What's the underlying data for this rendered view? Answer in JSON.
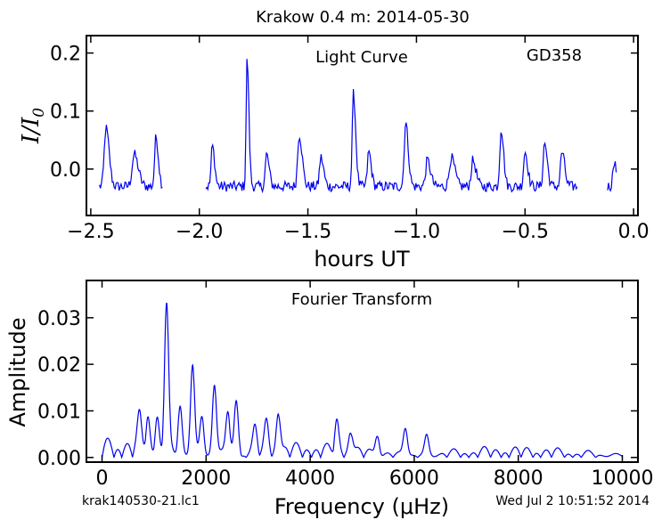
{
  "title": "Krakow 0.4 m:  2014-05-30",
  "footer_left": "krak140530-21.lc1",
  "footer_right": "Wed Jul  2 10:51:52 2014",
  "colors": {
    "line": "#0000ee",
    "axes": "#000000"
  },
  "chart_data": [
    {
      "type": "line",
      "panel": "light_curve",
      "inner_title": "Light Curve",
      "object_label": "GD358",
      "xlabel": "hours UT",
      "ylabel": "I/I_0",
      "xlim": [
        -2.52,
        0.02
      ],
      "ylim": [
        -0.08,
        0.23
      ],
      "x_ticks": [
        -2.5,
        -2.0,
        -1.5,
        -1.0,
        -0.5,
        0.0
      ],
      "x_tick_labels": [
        "−2.5",
        "−2.0",
        "−1.5",
        "−1.0",
        "−0.5",
        "0.0"
      ],
      "y_ticks": [
        0.0,
        0.1,
        0.2
      ],
      "y_tick_labels": [
        "0.0",
        "0.1",
        "0.2"
      ],
      "segments": [
        {
          "range": [
            -2.46,
            -2.17
          ],
          "pulses": [
            [
              -2.43,
              0.1,
              0.014
            ],
            [
              -2.3,
              0.055,
              0.018
            ],
            [
              -2.2,
              0.085,
              0.011
            ]
          ]
        },
        {
          "range": [
            -1.97,
            -0.26
          ],
          "pulses": [
            [
              -1.94,
              0.07,
              0.01
            ],
            [
              -1.78,
              0.22,
              0.008
            ],
            [
              -1.69,
              0.055,
              0.011
            ],
            [
              -1.54,
              0.09,
              0.013
            ],
            [
              -1.44,
              0.05,
              0.012
            ],
            [
              -1.29,
              0.16,
              0.01
            ],
            [
              -1.22,
              0.06,
              0.011
            ],
            [
              -1.05,
              0.11,
              0.012
            ],
            [
              -0.95,
              0.045,
              0.014
            ],
            [
              -0.84,
              0.05,
              0.016
            ],
            [
              -0.74,
              0.045,
              0.014
            ],
            [
              -0.61,
              0.1,
              0.011
            ],
            [
              -0.5,
              0.06,
              0.012
            ],
            [
              -0.41,
              0.075,
              0.012
            ],
            [
              -0.33,
              0.06,
              0.012
            ]
          ]
        },
        {
          "range": [
            -0.12,
            -0.08
          ],
          "pulses": [
            [
              -0.09,
              0.045,
              0.01
            ]
          ]
        }
      ],
      "baseline": -0.03
    },
    {
      "type": "line",
      "panel": "fourier_transform",
      "inner_title": "Fourier Transform",
      "xlabel": "Frequency (μHz)",
      "ylabel": "Amplitude",
      "xlim": [
        -300,
        10300
      ],
      "ylim": [
        -0.001,
        0.038
      ],
      "x_ticks": [
        0,
        2000,
        4000,
        6000,
        8000,
        10000
      ],
      "x_tick_labels": [
        "0",
        "2000",
        "4000",
        "6000",
        "8000",
        "10000"
      ],
      "y_ticks": [
        0.0,
        0.01,
        0.02,
        0.03
      ],
      "y_tick_labels": [
        "0.00",
        "0.01",
        "0.02",
        "0.03"
      ],
      "x_range": [
        0,
        10000
      ],
      "peaks": [
        [
          1240,
          0.031
        ],
        [
          1500,
          0.01
        ],
        [
          1740,
          0.019
        ],
        [
          2160,
          0.015
        ],
        [
          2580,
          0.011
        ],
        [
          2420,
          0.009
        ],
        [
          1920,
          0.008
        ],
        [
          880,
          0.0075
        ],
        [
          1060,
          0.0075
        ],
        [
          720,
          0.0065
        ],
        [
          3390,
          0.009
        ],
        [
          3160,
          0.006
        ],
        [
          2940,
          0.005
        ],
        [
          4510,
          0.0065
        ],
        [
          4780,
          0.005
        ],
        [
          5830,
          0.0055
        ],
        [
          6240,
          0.004
        ],
        [
          5290,
          0.0045
        ]
      ]
    }
  ]
}
